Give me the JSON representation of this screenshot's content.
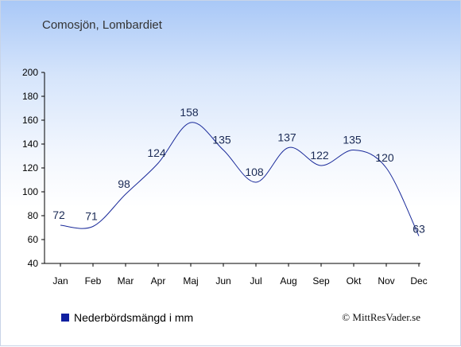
{
  "title": "Comosjön, Lombardiet",
  "legend_label": "Nederbördsmängd i mm",
  "credit": "© MittResVader.se",
  "colors": {
    "line": "#1a2a9a",
    "legend": "#1020a0"
  },
  "chart_data": {
    "type": "line",
    "categories": [
      "Jan",
      "Feb",
      "Mar",
      "Apr",
      "Maj",
      "Jun",
      "Jul",
      "Aug",
      "Sep",
      "Okt",
      "Nov",
      "Dec"
    ],
    "series": [
      {
        "name": "Nederbördsmängd i mm",
        "values": [
          72,
          71,
          98,
          124,
          158,
          135,
          108,
          137,
          122,
          135,
          120,
          63
        ]
      }
    ],
    "data_labels": [
      "72",
      "71",
      "98",
      "124",
      "158",
      "135",
      "108",
      "137",
      "122",
      "135",
      "120",
      "63"
    ],
    "ylim": [
      40,
      200
    ],
    "yticks": [
      40,
      60,
      80,
      100,
      120,
      140,
      160,
      180,
      200
    ],
    "grid": false,
    "legend_position": "bottom-left"
  }
}
